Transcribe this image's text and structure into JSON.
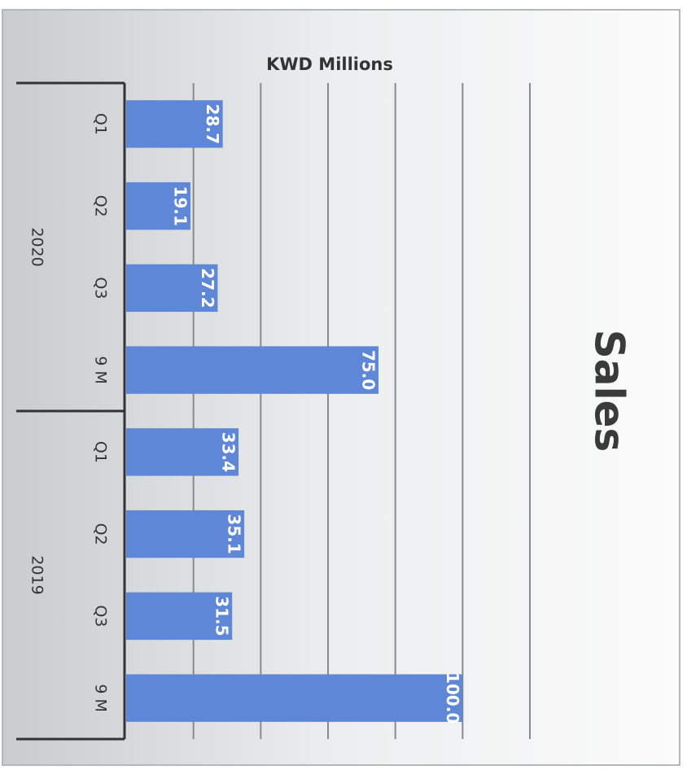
{
  "chart_data": {
    "type": "bar",
    "orientation": "horizontal",
    "title": "Sales",
    "value_axis_label": "KWD Millions",
    "color": "#5f87d8",
    "ylim": [
      0,
      120
    ],
    "yticks": [
      0,
      20,
      40,
      60,
      80,
      100,
      120
    ],
    "grid": true,
    "groups": [
      {
        "name": "2020",
        "categories": [
          "Q1",
          "Q2",
          "Q3",
          "9 M"
        ],
        "values": [
          28.7,
          19.1,
          27.2,
          75.0
        ],
        "value_labels": [
          "28.7",
          "19.1",
          "27.2",
          "75.0"
        ]
      },
      {
        "name": "2019",
        "categories": [
          "Q1",
          "Q2",
          "Q3",
          "9 M"
        ],
        "values": [
          33.4,
          35.1,
          31.5,
          100.0
        ],
        "value_labels": [
          "33.4",
          "35.1",
          "31.5",
          "100.0"
        ]
      }
    ]
  }
}
